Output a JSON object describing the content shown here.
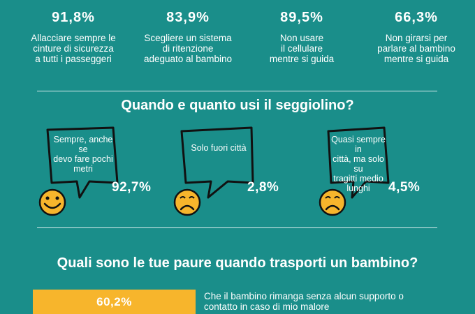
{
  "stats": [
    {
      "pct": "91,8%",
      "lines": [
        "Allacciare sempre le",
        "cinture di sicurezza",
        "a tutti i passeggeri"
      ]
    },
    {
      "pct": "83,9%",
      "lines": [
        "Scegliere un sistema",
        "di ritenzione",
        "adeguato al bambino"
      ]
    },
    {
      "pct": "89,5%",
      "lines": [
        "Non usare",
        "il cellulare",
        "mentre si guida"
      ]
    },
    {
      "pct": "66,3%",
      "lines": [
        "Non girarsi per",
        "parlare al bambino",
        "mentre si guida"
      ]
    }
  ],
  "seat_section": {
    "title": "Quando e quanto usi il seggiolino?",
    "items": [
      {
        "lines": [
          "Sempre, anche se",
          "devo fare pochi",
          "metri"
        ],
        "pct": "92,7%",
        "face": "happy-face-icon"
      },
      {
        "lines": [
          "Solo fuori città"
        ],
        "pct": "2,8%",
        "face": "sad-face-icon"
      },
      {
        "lines": [
          "Quasi sempre in",
          "città, ma solo su",
          "tragitti medio",
          "lunghi"
        ],
        "pct": "4,5%",
        "face": "sad-face-icon"
      }
    ]
  },
  "fears_section": {
    "title": "Quali sono le tue paure quando trasporti un bambino?",
    "items": [
      {
        "pct": "60,2%",
        "lines": [
          "Che il bambino rimanga senza alcun supporto o",
          "contatto in caso di mio malore"
        ]
      }
    ]
  },
  "colors": {
    "background": "#1a8e8a",
    "bar": "#f7b52c",
    "text": "#ffffff"
  }
}
